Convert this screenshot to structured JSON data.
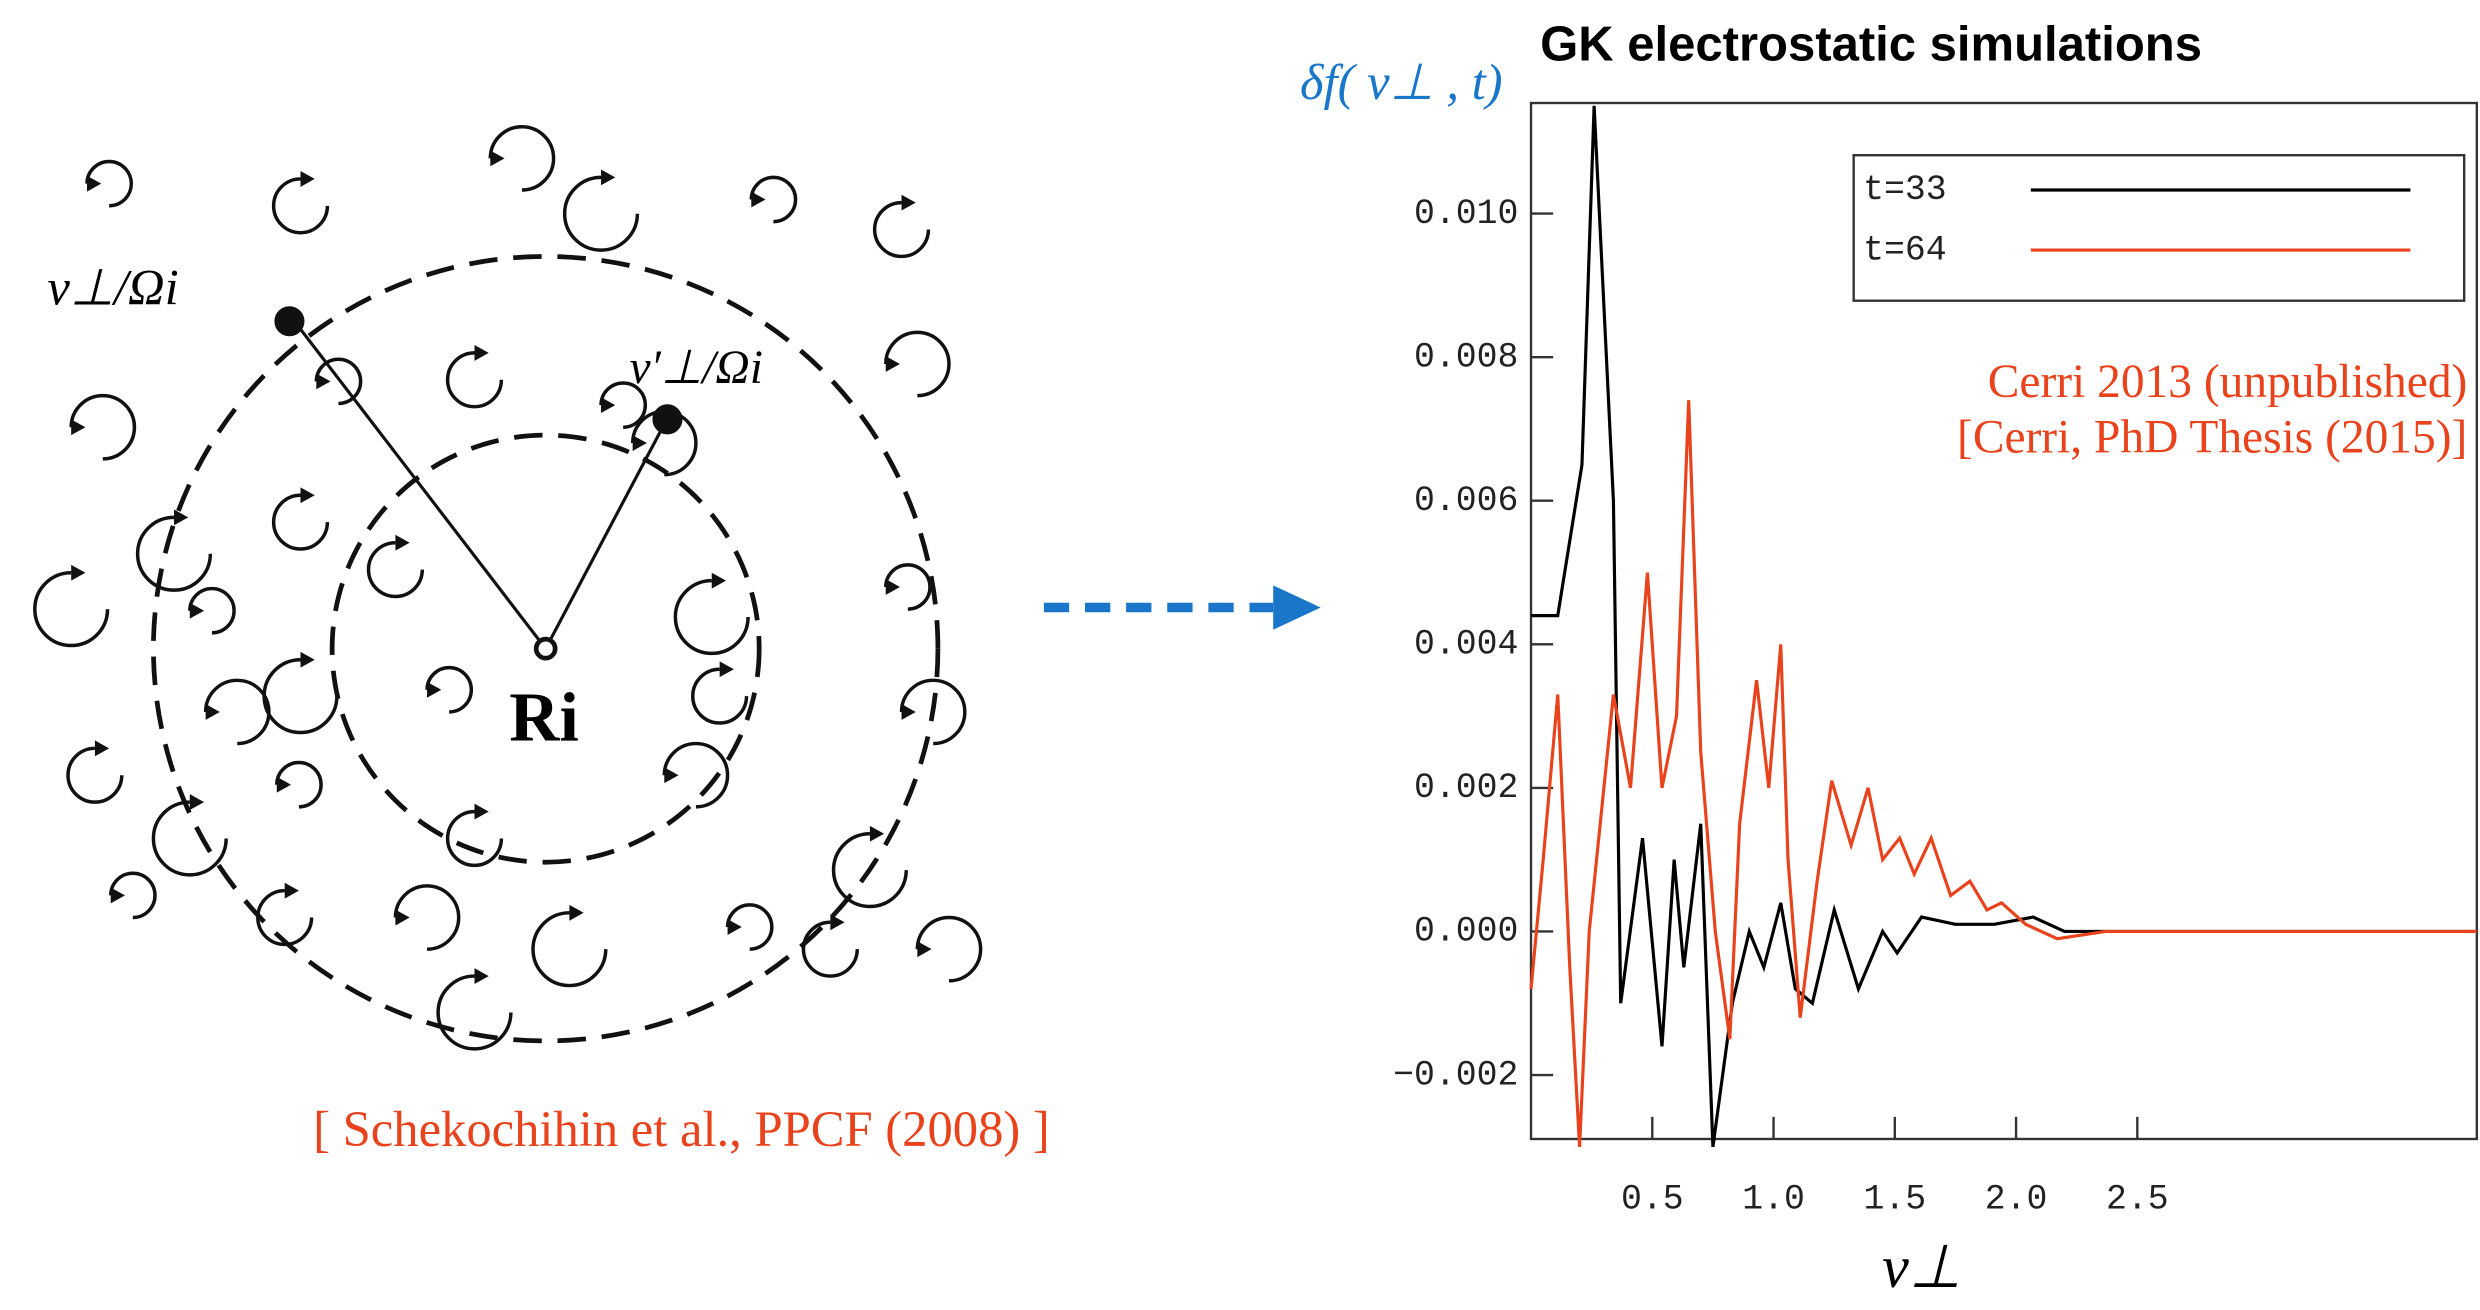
{
  "diagram": {
    "labels": {
      "outer": "v⊥/Ωi",
      "inner": "v′⊥/Ωi",
      "center": "Ri"
    },
    "citation": "[ Schekochihin et al., PPCF (2008) ]"
  },
  "chart_data": {
    "type": "line",
    "title": "GK electrostatic simulations",
    "y_label": "δf( v⊥ , t)",
    "x_label": "v⊥",
    "annotations": [
      "Cerri 2013 (unpublished)",
      "[Cerri, PhD Thesis (2015)]"
    ],
    "xlim": [
      0,
      3.9
    ],
    "ylim": [
      -0.00289,
      0.01154
    ],
    "xticks": [
      0.5,
      {
        "value": 1.0,
        "label": "1.0"
      },
      1.5,
      {
        "value": 2.0,
        "label": "2.0"
      },
      2.5
    ],
    "yticks": [
      {
        "value": -0.002,
        "label": "−0.002"
      },
      {
        "value": 0,
        "label": "0.000"
      },
      {
        "value": 0.002,
        "label": "0.002"
      },
      {
        "value": 0.004,
        "label": "0.004"
      },
      {
        "value": 0.006,
        "label": "0.006"
      },
      {
        "value": 0.008,
        "label": "0.008"
      },
      {
        "value": 0.01,
        "label": "0.010"
      }
    ],
    "legend": "upper right",
    "series": [
      {
        "name": "t=33",
        "color": "#000000",
        "x": [
          0,
          0.11,
          0.21,
          0.26,
          0.34,
          0.37,
          0.46,
          0.54,
          0.59,
          0.63,
          0.7,
          0.75,
          0.83,
          0.9,
          0.96,
          1.03,
          1.09,
          1.16,
          1.25,
          1.35,
          1.45,
          1.51,
          1.61,
          1.75,
          1.91,
          2.07,
          2.2,
          3.9
        ],
        "values": [
          0.0044,
          0.0044,
          0.0065,
          0.0115,
          0.006,
          -0.001,
          0.0013,
          -0.0016,
          0.001,
          -0.0005,
          0.0015,
          -0.003,
          -0.001,
          0.0,
          -0.0005,
          0.0004,
          -0.0008,
          -0.001,
          0.0003,
          -0.0008,
          0.0,
          -0.0003,
          0.0002,
          0.0001,
          0.0001,
          0.0002,
          0.0,
          0.0
        ]
      },
      {
        "name": "t=64",
        "color": "#e8431c",
        "x": [
          0,
          0.05,
          0.11,
          0.16,
          0.2,
          0.24,
          0.34,
          0.41,
          0.48,
          0.54,
          0.6,
          0.65,
          0.7,
          0.76,
          0.82,
          0.86,
          0.93,
          0.98,
          1.03,
          1.06,
          1.11,
          1.18,
          1.24,
          1.32,
          1.39,
          1.45,
          1.52,
          1.58,
          1.65,
          1.73,
          1.81,
          1.88,
          1.94,
          2.04,
          2.17,
          2.37,
          3.9
        ],
        "values": [
          -0.0008,
          0.001,
          0.0033,
          -0.0005,
          -0.003,
          0.0,
          0.0033,
          0.002,
          0.005,
          0.002,
          0.003,
          0.0074,
          0.0025,
          0.0,
          -0.0015,
          0.0015,
          0.0035,
          0.002,
          0.004,
          0.001,
          -0.0012,
          0.0007,
          0.0021,
          0.0012,
          0.002,
          0.001,
          0.0013,
          0.0008,
          0.0013,
          0.0005,
          0.0007,
          0.0003,
          0.0004,
          0.0001,
          -0.0001,
          0.0,
          0.0
        ]
      }
    ]
  }
}
